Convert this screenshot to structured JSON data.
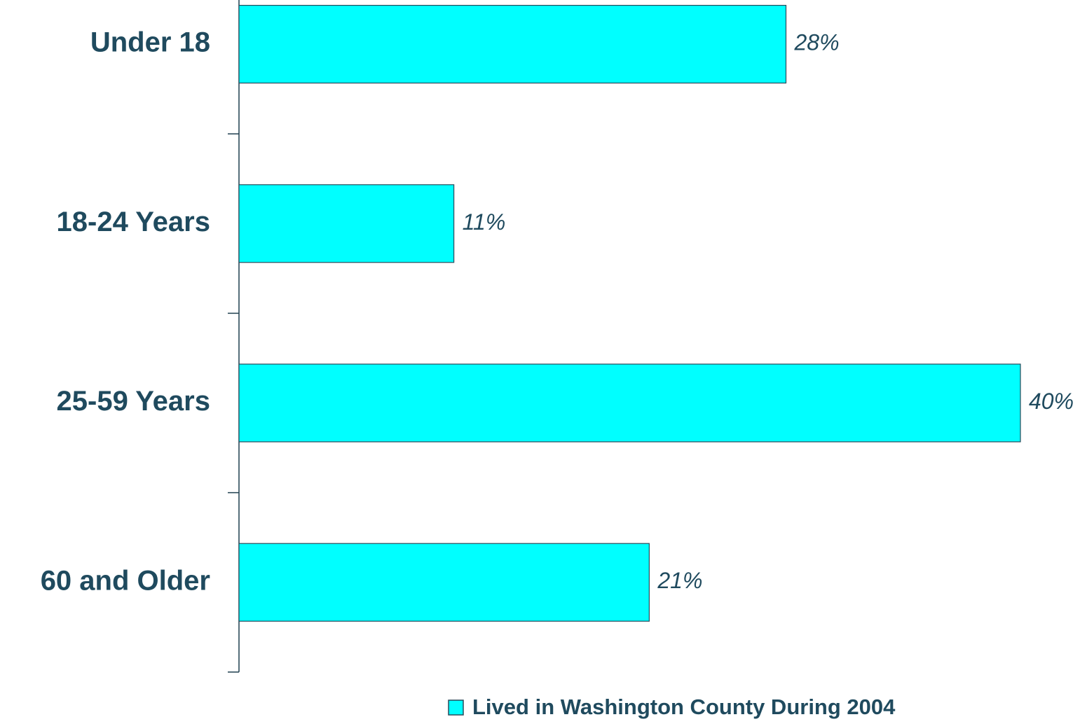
{
  "chart_data": {
    "type": "bar",
    "orientation": "horizontal",
    "categories": [
      "Under 18",
      "18-24 Years",
      "25-59 Years",
      "60 and Older"
    ],
    "series": [
      {
        "name": "Lived in Washington County During 2004",
        "color": "#00ffff",
        "values": [
          28,
          11,
          40,
          21
        ],
        "value_labels": [
          "28%",
          "11%",
          "40%",
          "21%"
        ]
      }
    ],
    "legend": "bottom"
  }
}
